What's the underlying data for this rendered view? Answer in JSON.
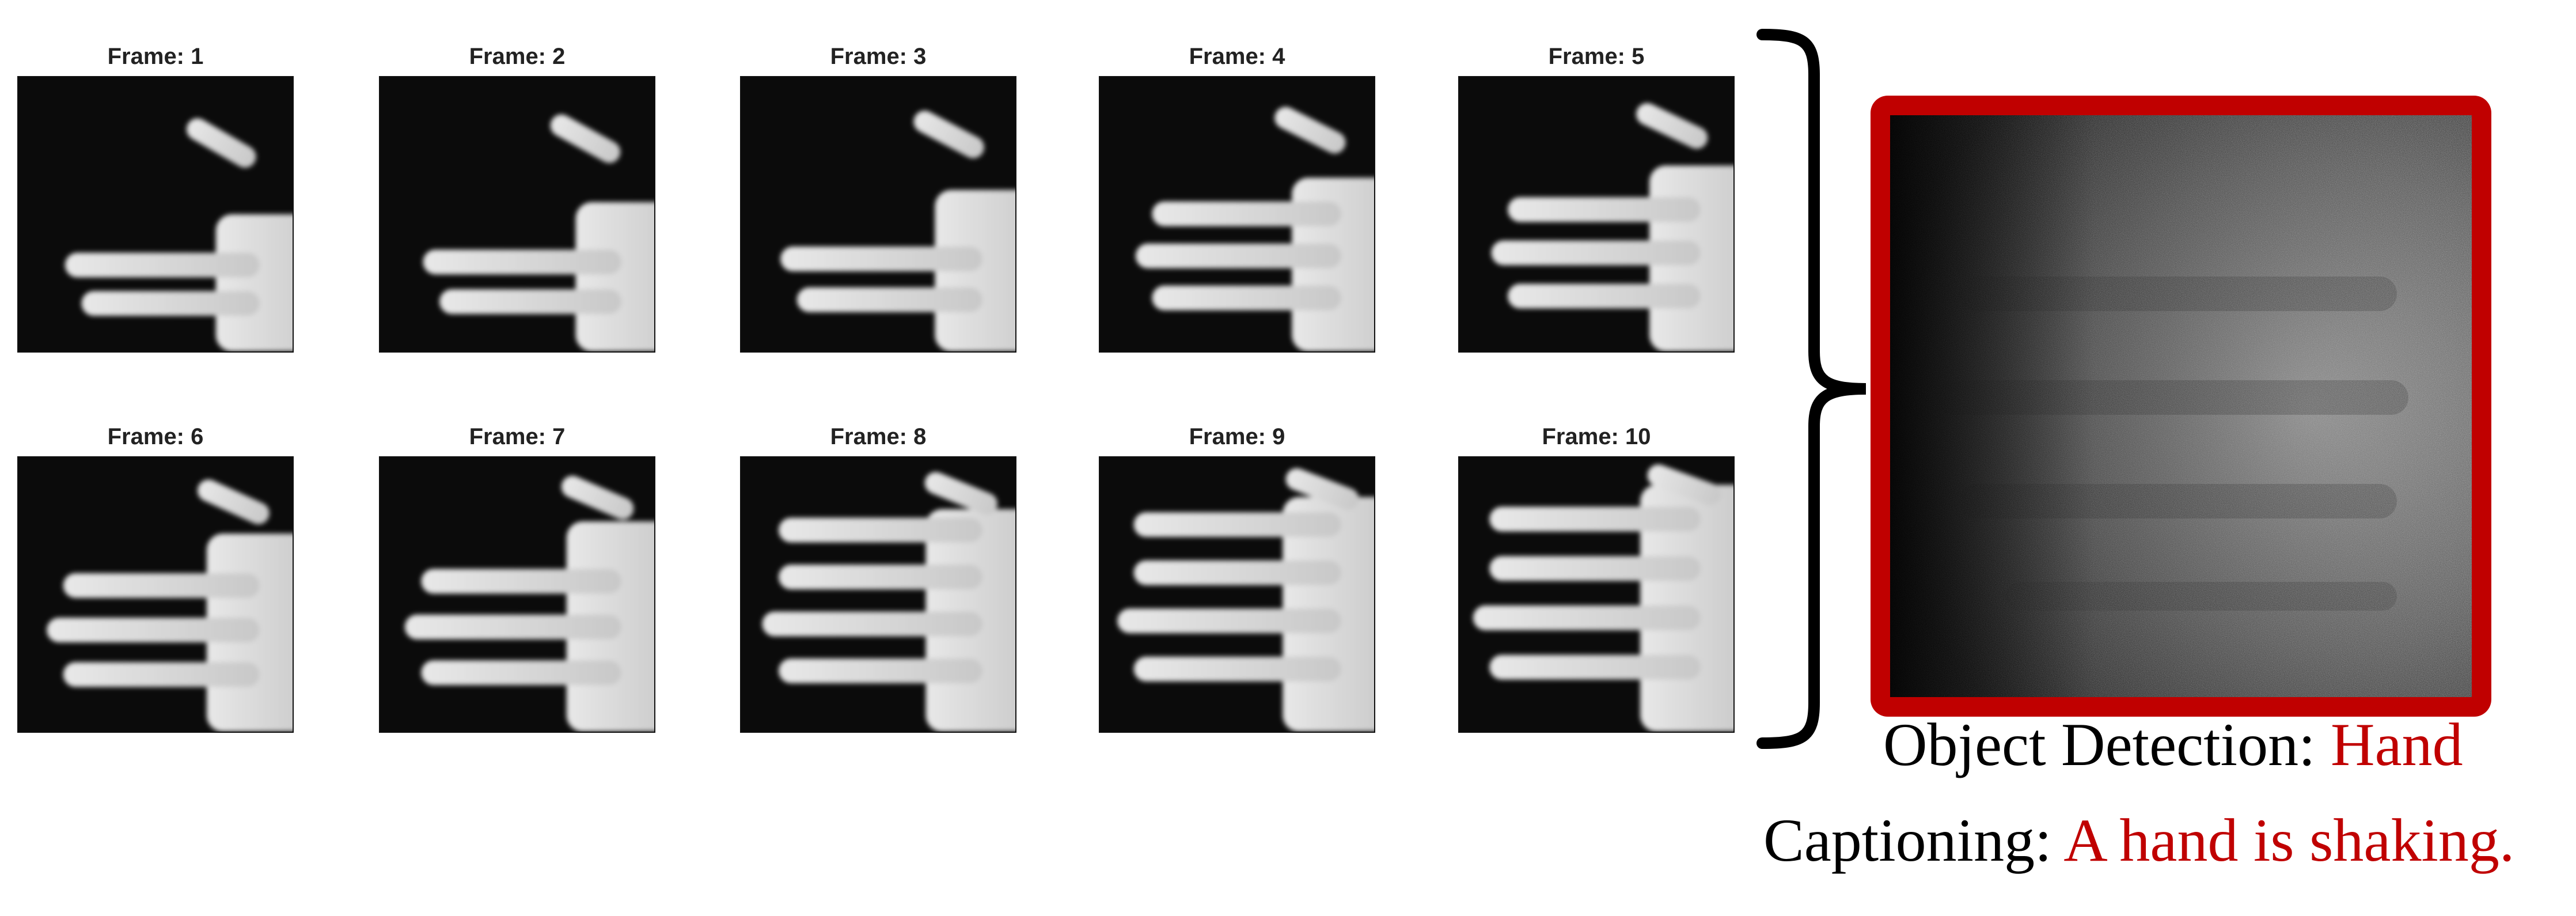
{
  "frames": [
    {
      "title": "Frame: 1"
    },
    {
      "title": "Frame: 2"
    },
    {
      "title": "Frame: 3"
    },
    {
      "title": "Frame: 4"
    },
    {
      "title": "Frame: 5"
    },
    {
      "title": "Frame: 6"
    },
    {
      "title": "Frame: 7"
    },
    {
      "title": "Frame: 8"
    },
    {
      "title": "Frame: 9"
    },
    {
      "title": "Frame: 10"
    }
  ],
  "detection": {
    "label": "Object Detection: ",
    "value": "Hand"
  },
  "captioning": {
    "label": "Captioning: ",
    "value": "A hand is shaking."
  },
  "colors": {
    "accent": "#c00000",
    "frame_bg": "#0b0b0b",
    "hand": "#c8c8c8"
  }
}
